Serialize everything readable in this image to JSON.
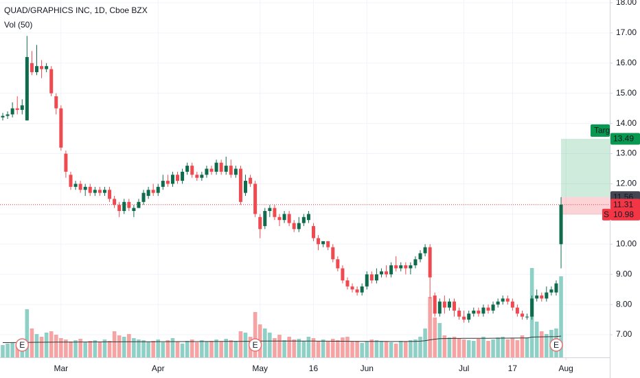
{
  "chart_data": {
    "type": "candlestick",
    "title": "QUAD/GRAPHICS INC, 1D, Cboe BZX",
    "subtitle": "Vol (50)",
    "open": [
      14.2,
      14.25,
      14.3,
      14.5,
      14.45,
      14.1,
      16.0,
      15.7,
      15.9,
      15.8,
      15.8,
      14.9,
      14.5,
      13.0,
      12.3,
      11.9,
      12.0,
      11.8,
      11.9,
      11.7,
      11.8,
      11.7,
      11.8,
      11.5,
      11.3,
      11.1,
      11.4,
      11.1,
      11.2,
      11.4,
      11.6,
      11.8,
      11.7,
      11.9,
      12.1,
      12.0,
      12.3,
      12.1,
      12.4,
      12.6,
      12.3,
      12.2,
      12.3,
      12.5,
      12.4,
      12.7,
      12.4,
      12.6,
      12.3,
      12.5,
      11.7,
      12.2,
      12.0,
      10.9,
      10.6,
      11.1,
      11.2,
      10.9,
      10.8,
      11.0,
      10.7,
      10.5,
      10.7,
      10.8,
      10.6,
      10.2,
      10.0,
      10.1,
      9.9,
      9.5,
      9.2,
      8.8,
      8.6,
      8.5,
      8.4,
      8.6,
      9.0,
      8.8,
      9.0,
      9.1,
      9.0,
      9.3,
      9.2,
      9.3,
      9.2,
      9.3,
      9.5,
      9.7,
      9.9,
      8.3,
      7.7,
      8.1,
      7.9,
      8.1,
      7.8,
      7.6,
      7.5,
      7.7,
      7.8,
      7.7,
      7.9,
      7.8,
      8.0,
      8.1,
      8.2,
      8.1,
      7.9,
      7.7,
      7.6,
      7.6,
      8.2,
      8.3,
      8.2,
      8.4,
      8.4,
      10.0
    ],
    "high": [
      14.35,
      14.4,
      14.7,
      14.9,
      14.8,
      16.9,
      16.4,
      16.6,
      16.1,
      16.0,
      15.9,
      15.0,
      14.6,
      13.1,
      12.4,
      12.1,
      12.1,
      12.0,
      12.0,
      11.9,
      11.9,
      11.9,
      11.9,
      11.6,
      11.4,
      11.5,
      11.5,
      11.3,
      11.5,
      11.8,
      11.9,
      12.0,
      12.0,
      12.3,
      12.3,
      12.4,
      12.4,
      12.5,
      12.7,
      12.7,
      12.4,
      12.4,
      12.6,
      12.6,
      12.8,
      12.8,
      12.9,
      12.8,
      12.6,
      12.6,
      12.3,
      12.3,
      12.1,
      11.0,
      11.2,
      11.3,
      11.3,
      11.0,
      11.1,
      11.1,
      10.8,
      10.9,
      11.0,
      11.1,
      10.7,
      10.3,
      10.1,
      10.1,
      10.0,
      9.6,
      9.3,
      8.9,
      8.7,
      8.6,
      8.7,
      9.1,
      9.1,
      9.2,
      9.2,
      9.3,
      9.4,
      9.6,
      9.4,
      9.4,
      9.4,
      9.6,
      9.8,
      10.0,
      10.0,
      8.4,
      8.2,
      8.3,
      8.2,
      8.2,
      7.9,
      7.8,
      7.8,
      7.9,
      7.9,
      8.0,
      8.0,
      8.1,
      8.2,
      8.3,
      8.3,
      8.2,
      8.0,
      7.8,
      7.7,
      8.3,
      8.5,
      8.4,
      8.6,
      8.6,
      8.8,
      11.56
    ],
    "low": [
      14.1,
      14.15,
      14.2,
      14.3,
      14.3,
      14.1,
      15.6,
      15.6,
      15.5,
      15.7,
      14.9,
      14.3,
      13.1,
      12.2,
      11.8,
      11.8,
      11.7,
      11.6,
      11.6,
      11.6,
      11.6,
      11.6,
      11.4,
      11.2,
      10.9,
      11.0,
      11.1,
      10.9,
      11.2,
      11.3,
      11.5,
      11.6,
      11.6,
      11.8,
      11.9,
      11.9,
      12.0,
      12.0,
      12.3,
      12.2,
      12.1,
      12.1,
      12.2,
      12.3,
      12.3,
      12.3,
      12.3,
      12.2,
      12.2,
      11.3,
      11.6,
      11.9,
      10.9,
      10.2,
      10.5,
      10.9,
      10.8,
      10.6,
      10.7,
      10.6,
      10.4,
      10.4,
      10.6,
      10.7,
      10.1,
      9.8,
      9.9,
      9.8,
      9.4,
      9.1,
      8.7,
      8.5,
      8.4,
      8.3,
      8.3,
      8.5,
      8.7,
      8.7,
      8.9,
      8.9,
      8.9,
      9.1,
      9.1,
      9.0,
      9.0,
      9.2,
      9.4,
      9.6,
      8.2,
      7.6,
      7.6,
      7.7,
      7.8,
      7.6,
      7.5,
      7.4,
      7.4,
      7.6,
      7.6,
      7.6,
      7.7,
      7.7,
      7.9,
      8.0,
      8.0,
      7.8,
      7.6,
      7.5,
      7.5,
      7.5,
      8.1,
      8.1,
      8.1,
      8.3,
      8.3,
      9.2
    ],
    "close": [
      14.25,
      14.3,
      14.5,
      14.45,
      14.6,
      16.2,
      15.7,
      15.9,
      15.8,
      15.9,
      15.0,
      14.5,
      13.2,
      12.4,
      11.9,
      12.0,
      11.8,
      11.9,
      11.7,
      11.8,
      11.7,
      11.8,
      11.5,
      11.3,
      11.1,
      11.4,
      11.2,
      11.2,
      11.4,
      11.7,
      11.8,
      11.7,
      11.9,
      12.1,
      12.0,
      12.3,
      12.1,
      12.4,
      12.6,
      12.3,
      12.2,
      12.3,
      12.5,
      12.4,
      12.7,
      12.4,
      12.6,
      12.3,
      12.5,
      11.4,
      12.1,
      12.0,
      11.0,
      10.5,
      11.1,
      11.2,
      10.9,
      10.8,
      11.0,
      10.7,
      10.5,
      10.7,
      10.9,
      11.0,
      10.2,
      10.0,
      10.1,
      9.9,
      9.5,
      9.2,
      8.8,
      8.6,
      8.5,
      8.4,
      8.6,
      9.0,
      8.8,
      9.0,
      9.1,
      9.0,
      9.3,
      9.2,
      9.3,
      9.2,
      9.3,
      9.5,
      9.7,
      9.9,
      8.9,
      7.7,
      8.1,
      7.9,
      8.1,
      7.8,
      7.6,
      7.5,
      7.7,
      7.8,
      7.7,
      7.9,
      7.8,
      8.0,
      8.1,
      8.2,
      8.1,
      7.9,
      7.7,
      7.6,
      7.6,
      8.2,
      8.3,
      8.2,
      8.4,
      8.5,
      8.7,
      11.31
    ],
    "volume": [
      180,
      200,
      210,
      190,
      240,
      700,
      420,
      340,
      300,
      360,
      380,
      330,
      280,
      260,
      230,
      250,
      270,
      220,
      240,
      250,
      230,
      260,
      240,
      380,
      320,
      300,
      340,
      280,
      260,
      250,
      230,
      240,
      260,
      220,
      250,
      280,
      230,
      200,
      240,
      260,
      220,
      250,
      230,
      240,
      260,
      230,
      270,
      250,
      240,
      380,
      360,
      300,
      660,
      480,
      420,
      360,
      280,
      330,
      250,
      300,
      260,
      270,
      240,
      300,
      280,
      240,
      260,
      230,
      270,
      250,
      290,
      300,
      230,
      240,
      210,
      230,
      260,
      250,
      240,
      230,
      220,
      200,
      240,
      230,
      250,
      260,
      300,
      420,
      880,
      580,
      500,
      320,
      290,
      300,
      280,
      260,
      250,
      240,
      270,
      300,
      240,
      260,
      290,
      300,
      260,
      280,
      250,
      320,
      290,
      1300,
      520,
      380,
      340,
      400,
      420,
      1180
    ],
    "volume_ma": [
      215,
      215,
      216,
      216,
      217,
      218,
      219,
      220,
      220,
      221,
      221,
      222,
      222,
      223,
      223,
      223,
      224,
      224,
      224,
      225,
      225,
      225,
      226,
      226,
      226,
      227,
      227,
      227,
      228,
      228,
      228,
      228,
      229,
      229,
      229,
      229,
      230,
      230,
      230,
      230,
      230,
      231,
      231,
      231,
      231,
      232,
      232,
      232,
      233,
      233,
      234,
      234,
      236,
      237,
      238,
      238,
      238,
      238,
      238,
      238,
      237,
      237,
      237,
      237,
      237,
      236,
      236,
      236,
      235,
      235,
      235,
      234,
      234,
      233,
      233,
      233,
      232,
      232,
      232,
      232,
      231,
      231,
      231,
      231,
      232,
      233,
      236,
      242,
      255,
      265,
      272,
      274,
      275,
      276,
      276,
      277,
      277,
      277,
      278,
      278,
      278,
      279,
      279,
      280,
      280,
      281,
      281,
      282,
      282,
      295,
      298,
      299,
      300,
      301,
      302,
      310
    ],
    "up_color": "#0f6b4c",
    "down_color": "#ef4a4f",
    "up_volume_color": "#8fd0c6",
    "down_volume_color": "#f5a3a3",
    "ma_color": "#333333",
    "ylim": [
      6.25,
      18.09
    ],
    "yticks": [
      {
        "value": 7,
        "label": "7.00"
      },
      {
        "value": 8,
        "label": "8.00"
      },
      {
        "value": 9,
        "label": "9.00"
      },
      {
        "value": 10,
        "label": "10.00"
      },
      {
        "value": 11,
        "label": "11.00"
      },
      {
        "value": 12,
        "label": "12.00"
      },
      {
        "value": 13,
        "label": "13.00"
      },
      {
        "value": 14,
        "label": "14.00"
      },
      {
        "value": 15,
        "label": "15.00"
      },
      {
        "value": 16,
        "label": "16.00"
      },
      {
        "value": 17,
        "label": "17.00"
      },
      {
        "value": 18,
        "label": "18.00"
      }
    ],
    "xticks": [
      {
        "value": 12,
        "label": "Mar"
      },
      {
        "value": 32,
        "label": "Apr"
      },
      {
        "value": 53,
        "label": "May"
      },
      {
        "value": 64,
        "label": "16"
      },
      {
        "value": 75,
        "label": "Jun"
      },
      {
        "value": 95,
        "label": "Jul"
      },
      {
        "value": 105,
        "label": "17"
      },
      {
        "value": 116,
        "label": "Aug"
      }
    ],
    "grid": true,
    "events": [
      {
        "label": "E",
        "index": 4
      },
      {
        "label": "E",
        "index": 52
      },
      {
        "label": "E",
        "index": 114
      }
    ],
    "price_line": {
      "value": 11.31,
      "color": "#f23645"
    },
    "position": {
      "target": 13.49,
      "target_label": "Targ",
      "entry": 11.56,
      "stop": 10.98,
      "stop_label": "S",
      "target_color": "#089950",
      "entry_color": "#434651",
      "stop_color": "#f23645",
      "start_index": 115
    }
  }
}
